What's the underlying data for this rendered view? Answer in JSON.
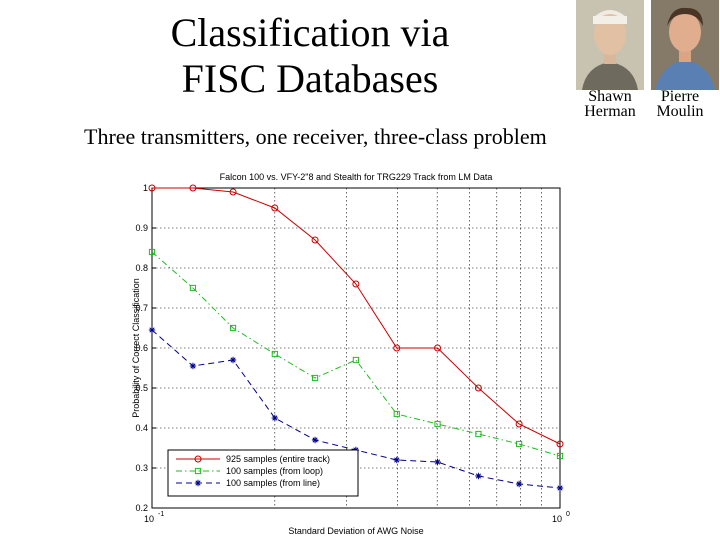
{
  "slide": {
    "title_line1": "Classification via",
    "title_line2": "FISC Databases",
    "subtitle": "Three transmitters, one receiver, three-class problem",
    "people": [
      {
        "first": "Shawn",
        "last": "Herman",
        "icon": "portrait-photo"
      },
      {
        "first": "Pierre",
        "last": "Moulin",
        "icon": "portrait-photo"
      }
    ]
  },
  "chart_data": {
    "type": "line",
    "title": "Falcon 100 vs. VFY-2\"8 and Stealth for TRG229 Track from LM Data",
    "xlabel": "Standard Deviation of AWG Noise",
    "ylabel": "Probability of Correct Classification",
    "xscale": "log",
    "xlim": [
      0.1,
      1
    ],
    "ylim": [
      0.2,
      1
    ],
    "x_ticks": [
      0.1,
      1
    ],
    "x_tick_labels": [
      "10",
      "10"
    ],
    "x_tick_exponents": [
      "-1",
      "0"
    ],
    "y_ticks": [
      0.2,
      0.3,
      0.4,
      0.5,
      0.6,
      0.7,
      0.8,
      0.9,
      1
    ],
    "y_tick_labels": [
      "0.2",
      "0.3",
      "0.4",
      "0.5",
      "0.6",
      "0.7",
      "0.8",
      "0.9",
      "1"
    ],
    "grid": true,
    "legend_position": "bottom-left",
    "series": [
      {
        "name": "925 samples (entire track)",
        "color": "#cc0000",
        "marker": "circle",
        "dash": "solid",
        "x": [
          0.1,
          0.126,
          0.158,
          0.2,
          0.251,
          0.316,
          0.398,
          0.501,
          0.631,
          0.794,
          1.0
        ],
        "y": [
          1.0,
          1.0,
          0.99,
          0.95,
          0.87,
          0.76,
          0.6,
          0.6,
          0.5,
          0.41,
          0.36
        ]
      },
      {
        "name": "100 samples (from loop)",
        "color": "#22bb22",
        "marker": "square",
        "dash": "dashdot",
        "x": [
          0.1,
          0.126,
          0.158,
          0.2,
          0.251,
          0.316,
          0.398,
          0.501,
          0.631,
          0.794,
          1.0
        ],
        "y": [
          0.84,
          0.75,
          0.65,
          0.585,
          0.525,
          0.57,
          0.435,
          0.41,
          0.385,
          0.36,
          0.33
        ]
      },
      {
        "name": "100 samples (from line)",
        "color": "#000088",
        "marker": "star",
        "dash": "dashed",
        "x": [
          0.1,
          0.126,
          0.158,
          0.2,
          0.251,
          0.316,
          0.398,
          0.501,
          0.631,
          0.794,
          1.0
        ],
        "y": [
          0.645,
          0.555,
          0.57,
          0.425,
          0.37,
          0.345,
          0.32,
          0.315,
          0.28,
          0.26,
          0.25
        ]
      }
    ]
  }
}
